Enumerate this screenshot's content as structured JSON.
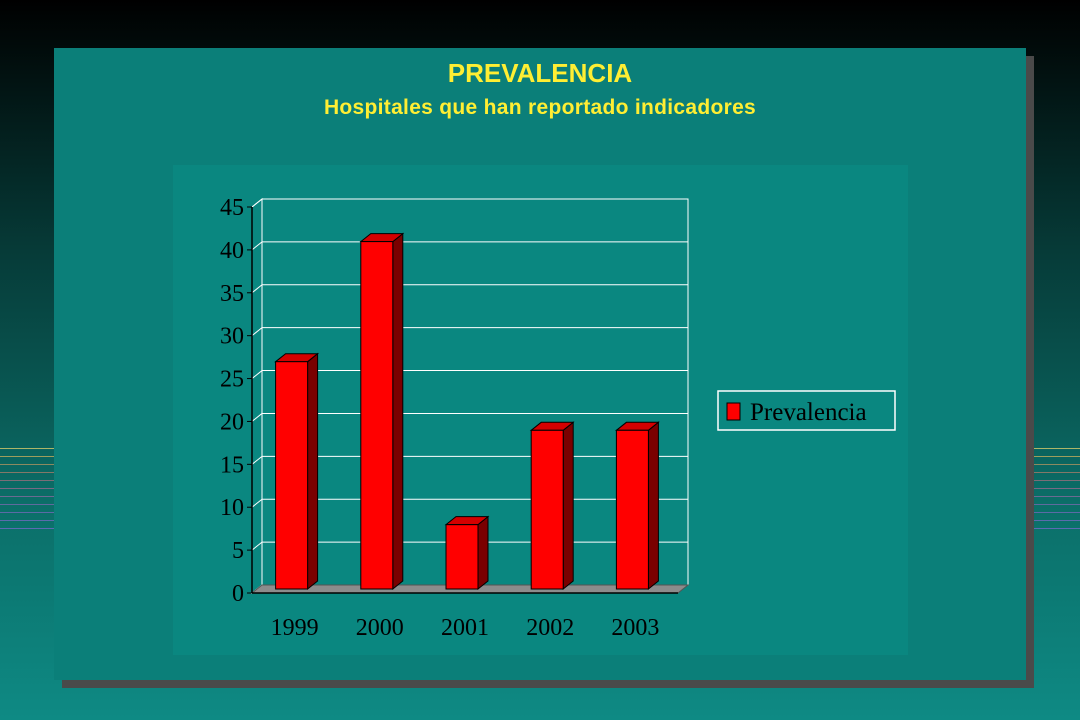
{
  "slide": {
    "title": "PREVALENCIA",
    "subtitle": "Hospitales que han reportado indicadores"
  },
  "colors": {
    "title": "#ffee33",
    "panel": "#0b7f79",
    "bar_front": "#ff0000",
    "bar_side": "#7a0000",
    "bar_top": "#d40000"
  },
  "chart_data": {
    "type": "bar",
    "categories": [
      "1999",
      "2000",
      "2001",
      "2002",
      "2003"
    ],
    "series": [
      {
        "name": "Prevalencia",
        "values": [
          26.5,
          40.5,
          7.5,
          18.5,
          18.5
        ]
      }
    ],
    "ylim": [
      0,
      45
    ],
    "yticks": [
      "0",
      "5",
      "10",
      "15",
      "20",
      "25",
      "30",
      "35",
      "40",
      "45"
    ],
    "grid": true,
    "legend": "right",
    "style": "3d"
  }
}
